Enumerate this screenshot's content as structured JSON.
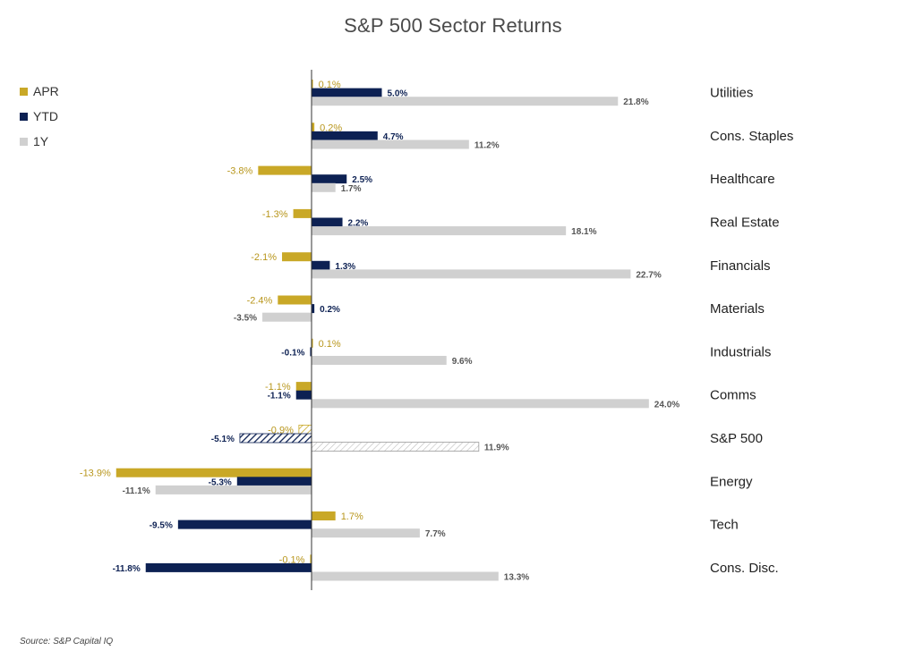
{
  "chart_data": {
    "type": "bar",
    "orientation": "horizontal",
    "title": "S&P 500 Sector Returns",
    "categories": [
      "Utilities",
      "Cons. Staples",
      "Healthcare",
      "Real Estate",
      "Financials",
      "Materials",
      "Industrials",
      "Comms",
      "S&P 500",
      "Energy",
      "Tech",
      "Cons. Disc."
    ],
    "series": [
      {
        "name": "APR",
        "color": "#C9A827",
        "values": [
          0.1,
          0.2,
          -3.8,
          -1.3,
          -2.1,
          -2.4,
          0.1,
          -1.1,
          -0.9,
          -13.9,
          1.7,
          -0.1
        ],
        "labels": [
          "0.1%",
          "0.2%",
          "-3.8%",
          "-1.3%",
          "-2.1%",
          "-2.4%",
          "0.1%",
          "-1.1%",
          "-0.9%",
          "-13.9%",
          "1.7%",
          "-0.1%"
        ]
      },
      {
        "name": "YTD",
        "color": "#0D2153",
        "values": [
          5.0,
          4.7,
          2.5,
          2.2,
          1.3,
          0.2,
          -0.1,
          -1.1,
          -5.1,
          -5.3,
          -9.5,
          -11.8
        ],
        "labels": [
          "5.0%",
          "4.7%",
          "2.5%",
          "2.2%",
          "1.3%",
          "0.2%",
          "-0.1%",
          "-1.1%",
          "-5.1%",
          "-5.3%",
          "-9.5%",
          "-11.8%"
        ]
      },
      {
        "name": "1Y",
        "color": "#D0D0D0",
        "values": [
          21.8,
          11.2,
          1.7,
          18.1,
          22.7,
          -3.5,
          9.6,
          24.0,
          11.9,
          -11.1,
          7.7,
          13.3
        ],
        "labels": [
          "21.8%",
          "11.2%",
          "1.7%",
          "18.1%",
          "22.7%",
          "-3.5%",
          "9.6%",
          "24.0%",
          "11.9%",
          "-11.1%",
          "7.7%",
          "13.3%"
        ]
      }
    ],
    "highlight_category": "S&P 500",
    "highlight_style": "hatched",
    "legend_position": "top-left",
    "xlim": [
      -14.5,
      25
    ],
    "grid": false
  },
  "source": "Source: S&P Capital IQ"
}
